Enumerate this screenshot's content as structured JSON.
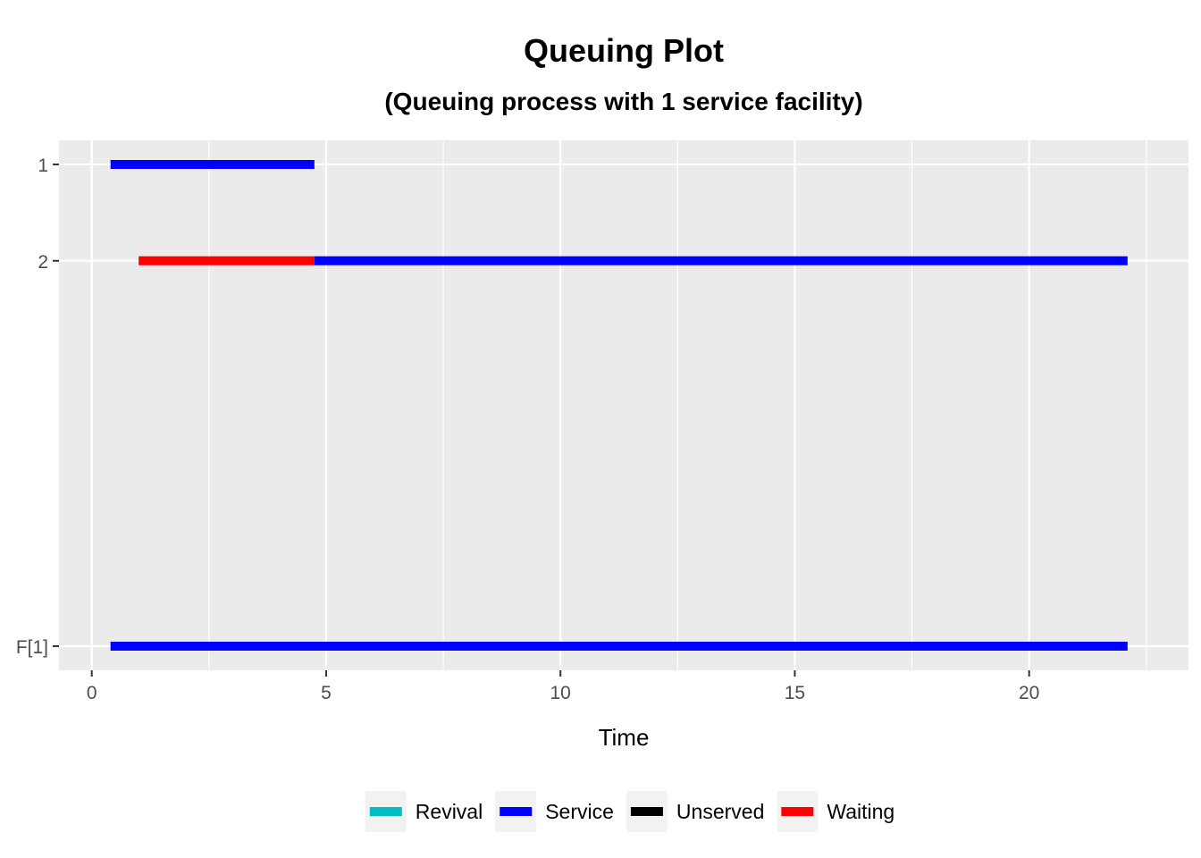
{
  "chart_data": {
    "type": "gantt",
    "title": "Queuing Plot",
    "subtitle": "(Queuing process with 1 service facility)",
    "xlabel": "Time",
    "ylabel": "",
    "xlim": [
      -0.7,
      23.4
    ],
    "x_ticks": [
      0,
      5,
      10,
      15,
      20
    ],
    "x_tick_labels": [
      "0",
      "5",
      "10",
      "15",
      "20"
    ],
    "y_categories": [
      {
        "label": "1",
        "level": 1
      },
      {
        "label": "2",
        "level": 2
      },
      {
        "label": "F[1]",
        "level": 6
      }
    ],
    "ylim": [
      0.75,
      6.25
    ],
    "grid": true,
    "legend_position": "bottom",
    "legend": [
      {
        "name": "Revival",
        "color": "#00BFC4"
      },
      {
        "name": "Service",
        "color": "#0000FF"
      },
      {
        "name": "Unserved",
        "color": "#000000"
      },
      {
        "name": "Waiting",
        "color": "#FF0000"
      }
    ],
    "segments": [
      {
        "row": "1",
        "start": 0.4,
        "end": 4.75,
        "state": "Service"
      },
      {
        "row": "2",
        "start": 1.0,
        "end": 4.75,
        "state": "Waiting"
      },
      {
        "row": "2",
        "start": 4.75,
        "end": 22.1,
        "state": "Service"
      },
      {
        "row": "F[1]",
        "start": 0.4,
        "end": 22.1,
        "state": "Service"
      }
    ]
  }
}
